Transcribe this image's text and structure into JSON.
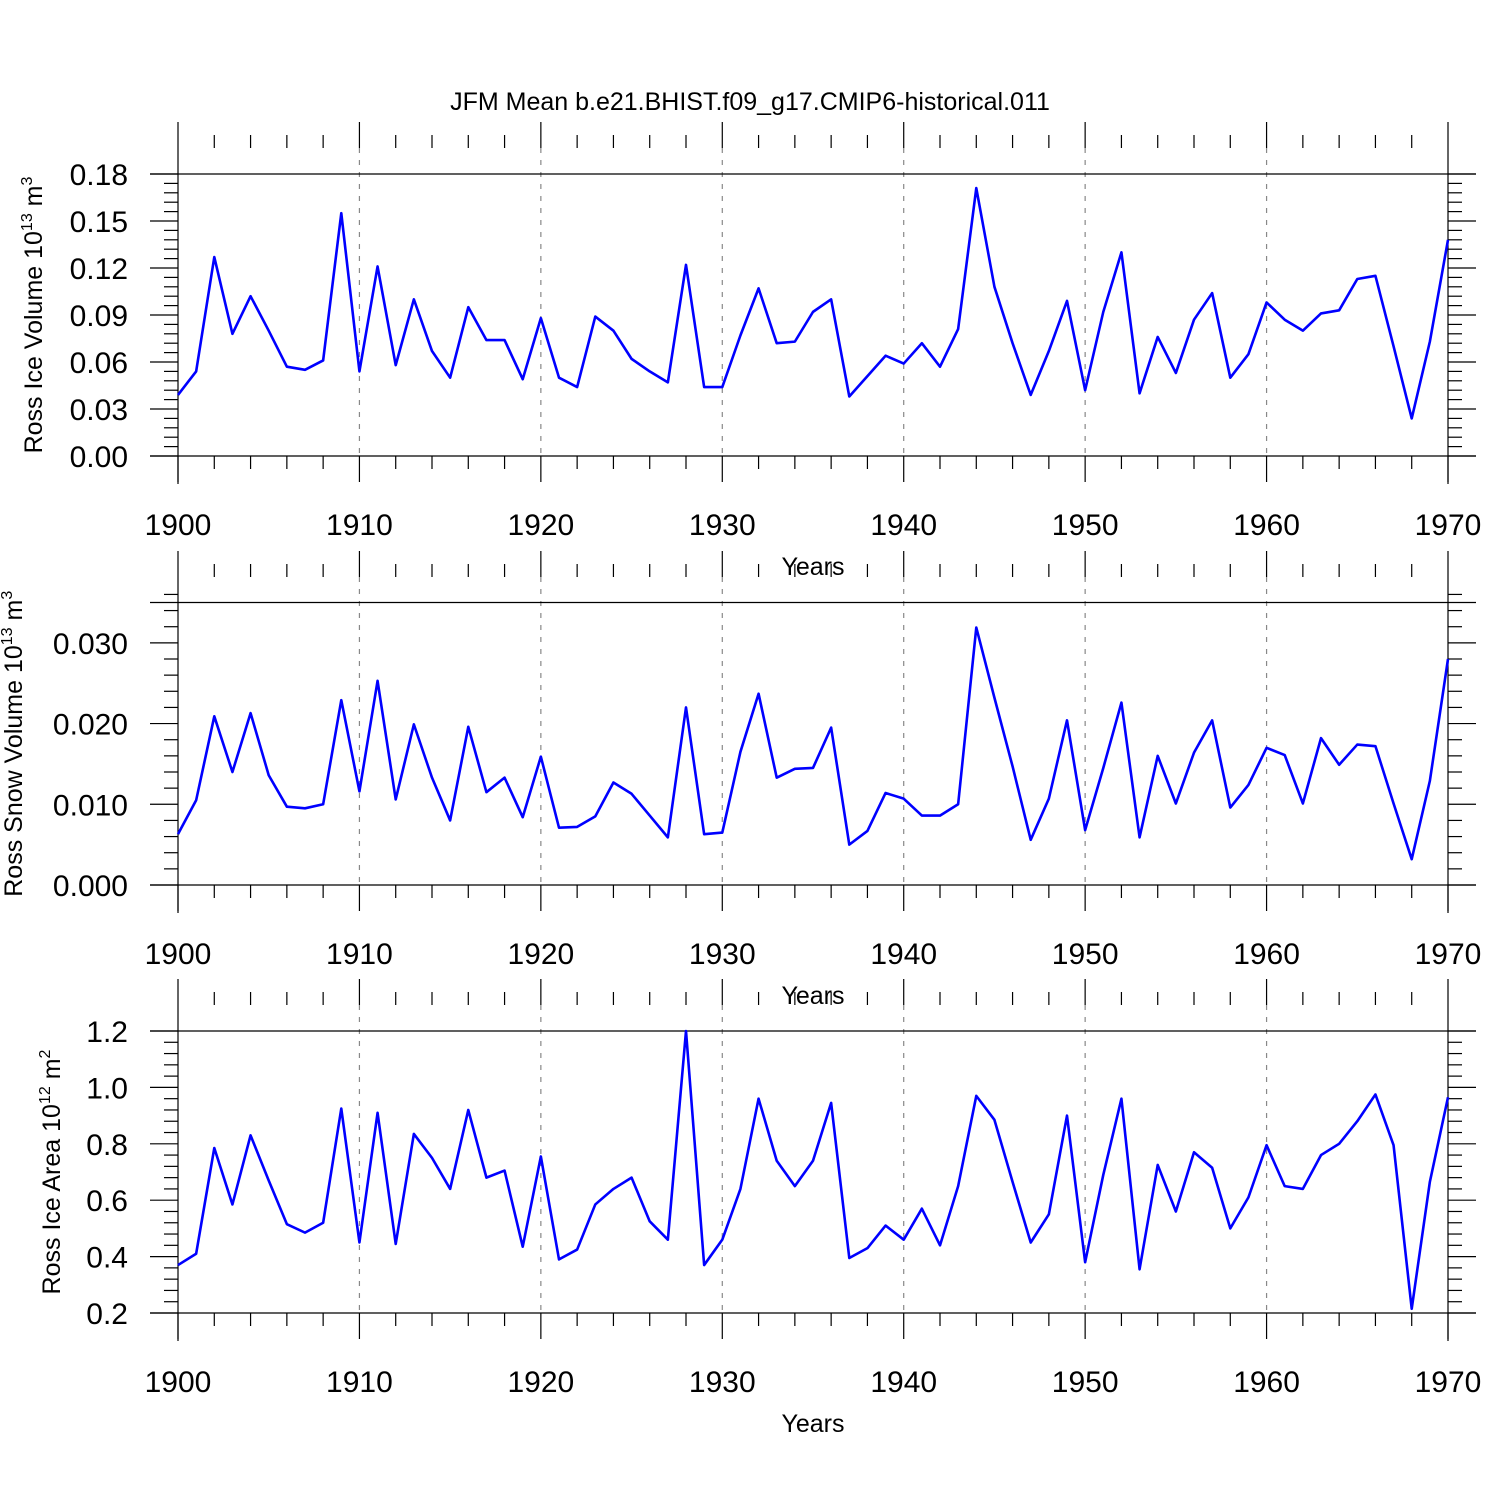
{
  "chart_data": [
    {
      "type": "line",
      "title": "JFM Mean b.e21.BHIST.f09_g17.CMIP6-historical.011",
      "xlabel": "Years",
      "ylabel_main": "Ross Ice Volume 10",
      "ylabel_exp1": "13",
      "ylabel_mid": " m",
      "ylabel_exp2": "3",
      "xlim": [
        1900,
        1970
      ],
      "ylim": [
        0.0,
        0.18
      ],
      "x_ticks": [
        "1900",
        "1910",
        "1920",
        "1930",
        "1940",
        "1950",
        "1960",
        "1970"
      ],
      "y_ticks": [
        "0.00",
        "0.03",
        "0.06",
        "0.09",
        "0.12",
        "0.15",
        "0.18"
      ],
      "y_tick_values": [
        0.0,
        0.03,
        0.06,
        0.09,
        0.12,
        0.15,
        0.18
      ],
      "x_gridlines": [
        1910,
        1920,
        1930,
        1940,
        1950,
        1960
      ],
      "line_color": "#0000ff",
      "series": [
        {
          "name": "Ross Ice Volume",
          "x_start": 1900,
          "values": [
            0.039,
            0.054,
            0.127,
            0.078,
            0.102,
            0.08,
            0.057,
            0.055,
            0.061,
            0.155,
            0.054,
            0.121,
            0.058,
            0.1,
            0.067,
            0.05,
            0.095,
            0.074,
            0.074,
            0.049,
            0.088,
            0.05,
            0.044,
            0.089,
            0.08,
            0.062,
            0.054,
            0.047,
            0.122,
            0.044,
            0.044,
            0.077,
            0.107,
            0.072,
            0.073,
            0.092,
            0.1,
            0.038,
            0.051,
            0.064,
            0.059,
            0.072,
            0.057,
            0.081,
            0.171,
            0.108,
            0.072,
            0.039,
            0.067,
            0.099,
            0.042,
            0.092,
            0.13,
            0.04,
            0.076,
            0.053,
            0.087,
            0.104,
            0.05,
            0.065,
            0.098,
            0.087,
            0.08,
            0.091,
            0.093,
            0.113,
            0.115,
            0.07,
            0.024,
            0.073,
            0.138
          ]
        }
      ]
    },
    {
      "type": "line",
      "title": "",
      "xlabel": "Years",
      "ylabel_main": "Ross Snow Volume 10",
      "ylabel_exp1": "13",
      "ylabel_mid": " m",
      "ylabel_exp2": "3",
      "xlim": [
        1900,
        1970
      ],
      "ylim": [
        0.0,
        0.035
      ],
      "x_ticks": [
        "1900",
        "1910",
        "1920",
        "1930",
        "1940",
        "1950",
        "1960",
        "1970"
      ],
      "y_ticks": [
        "0.000",
        "0.010",
        "0.020",
        "0.030"
      ],
      "y_tick_values": [
        0.0,
        0.01,
        0.02,
        0.03
      ],
      "x_gridlines": [
        1910,
        1920,
        1930,
        1940,
        1950,
        1960
      ],
      "line_color": "#0000ff",
      "series": [
        {
          "name": "Ross Snow Volume",
          "x_start": 1900,
          "values": [
            0.0063,
            0.0105,
            0.0209,
            0.014,
            0.0213,
            0.0136,
            0.0097,
            0.0095,
            0.01,
            0.0229,
            0.0116,
            0.0253,
            0.0106,
            0.0199,
            0.0133,
            0.008,
            0.0196,
            0.0115,
            0.0133,
            0.0084,
            0.0159,
            0.0071,
            0.0072,
            0.0085,
            0.0127,
            0.0113,
            0.0086,
            0.0059,
            0.022,
            0.0063,
            0.0065,
            0.0165,
            0.0237,
            0.0133,
            0.0144,
            0.0145,
            0.0195,
            0.005,
            0.0067,
            0.0114,
            0.0107,
            0.0086,
            0.0086,
            0.01,
            0.0319,
            0.0232,
            0.0147,
            0.0056,
            0.0107,
            0.0204,
            0.0068,
            0.0145,
            0.0226,
            0.0059,
            0.016,
            0.0101,
            0.0164,
            0.0204,
            0.0096,
            0.0124,
            0.017,
            0.0161,
            0.0101,
            0.0182,
            0.0149,
            0.0174,
            0.0172,
            0.0101,
            0.0032,
            0.0129,
            0.028
          ]
        }
      ]
    },
    {
      "type": "line",
      "title": "",
      "xlabel": "Years",
      "ylabel_main": "Ross Ice Area 10",
      "ylabel_exp1": "12",
      "ylabel_mid": " m",
      "ylabel_exp2": "2",
      "xlim": [
        1900,
        1970
      ],
      "ylim": [
        0.2,
        1.2
      ],
      "x_ticks": [
        "1900",
        "1910",
        "1920",
        "1930",
        "1940",
        "1950",
        "1960",
        "1970"
      ],
      "y_ticks": [
        "0.2",
        "0.4",
        "0.6",
        "0.8",
        "1.0",
        "1.2"
      ],
      "y_tick_values": [
        0.2,
        0.4,
        0.6,
        0.8,
        1.0,
        1.2
      ],
      "x_gridlines": [
        1910,
        1920,
        1930,
        1940,
        1950,
        1960
      ],
      "line_color": "#0000ff",
      "series": [
        {
          "name": "Ross Ice Area",
          "x_start": 1900,
          "values": [
            0.37,
            0.41,
            0.785,
            0.585,
            0.83,
            0.67,
            0.515,
            0.485,
            0.52,
            0.925,
            0.45,
            0.91,
            0.445,
            0.835,
            0.75,
            0.64,
            0.92,
            0.68,
            0.705,
            0.435,
            0.755,
            0.39,
            0.425,
            0.585,
            0.64,
            0.68,
            0.525,
            0.46,
            1.2,
            0.37,
            0.46,
            0.64,
            0.96,
            0.74,
            0.65,
            0.74,
            0.945,
            0.395,
            0.43,
            0.51,
            0.46,
            0.57,
            0.44,
            0.65,
            0.97,
            0.885,
            0.665,
            0.45,
            0.55,
            0.9,
            0.38,
            0.69,
            0.96,
            0.355,
            0.725,
            0.56,
            0.77,
            0.715,
            0.5,
            0.61,
            0.795,
            0.65,
            0.64,
            0.76,
            0.8,
            0.88,
            0.975,
            0.795,
            0.215,
            0.665,
            0.965
          ]
        }
      ]
    }
  ]
}
